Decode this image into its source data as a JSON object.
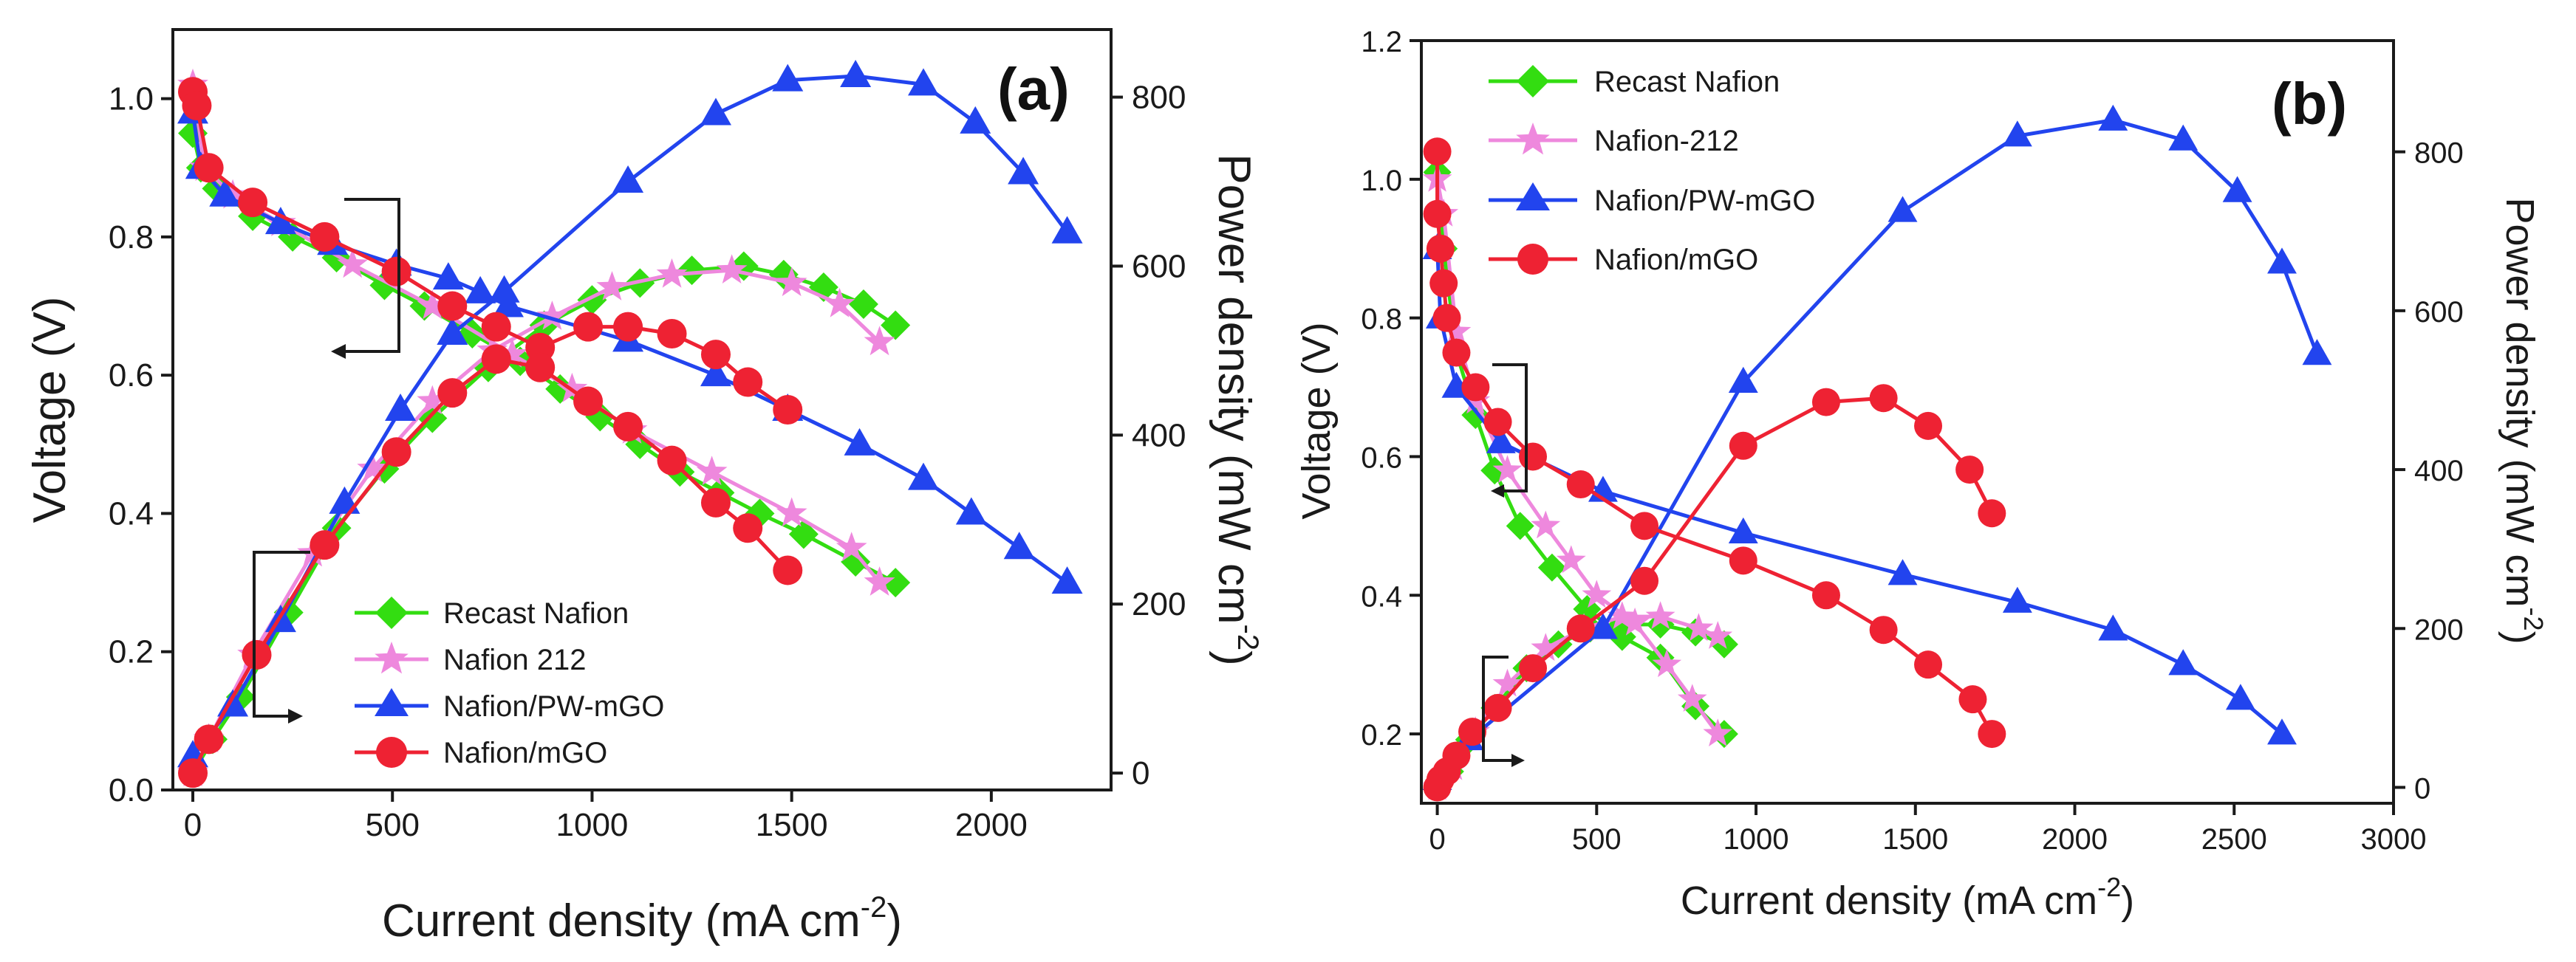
{
  "chart_data": [
    {
      "type": "line",
      "panel_label": "(a)",
      "xlabel": "Current density (mA cm",
      "xlabel_sup": "-2",
      "xlabel_close": ")",
      "ylabel": "Voltage (V)",
      "y2label": "Power density (mW cm",
      "y2label_sup": "-2",
      "y2label_close": ")",
      "xlim": [
        -50,
        2300
      ],
      "ylim": [
        0,
        1.1
      ],
      "y2lim": [
        -20,
        880
      ],
      "xticks": [
        "0",
        "500",
        "1000",
        "1500",
        "2000"
      ],
      "xtick_values": [
        0,
        500,
        1000,
        1500,
        2000
      ],
      "yticks": [
        "0.0",
        "0.2",
        "0.4",
        "0.6",
        "0.8",
        "1.0"
      ],
      "ytick_values": [
        0,
        0.2,
        0.4,
        0.6,
        0.8,
        1.0
      ],
      "y2ticks": [
        "0",
        "200",
        "400",
        "600",
        "800"
      ],
      "y2tick_values": [
        0,
        200,
        400,
        600,
        800
      ],
      "legend": [
        "Recast Nafion",
        "Nafion 212",
        "Nafion/PW-mGO",
        "Nafion/mGO"
      ],
      "legend_position": "bottom-left",
      "series": [
        {
          "name": "Recast Nafion",
          "color": "#33dd11",
          "marker": "diamond",
          "voltage": [
            [
              0,
              0.95
            ],
            [
              20,
              0.9
            ],
            [
              60,
              0.87
            ],
            [
              150,
              0.83
            ],
            [
              250,
              0.8
            ],
            [
              360,
              0.77
            ],
            [
              480,
              0.73
            ],
            [
              580,
              0.7
            ],
            [
              700,
              0.66
            ],
            [
              820,
              0.62
            ],
            [
              920,
              0.58
            ],
            [
              1020,
              0.54
            ],
            [
              1120,
              0.5
            ],
            [
              1220,
              0.46
            ],
            [
              1320,
              0.43
            ],
            [
              1420,
              0.4
            ],
            [
              1530,
              0.37
            ],
            [
              1660,
              0.33
            ],
            [
              1760,
              0.3
            ]
          ],
          "power": [
            [
              0,
              0
            ],
            [
              50,
              40
            ],
            [
              120,
              90
            ],
            [
              240,
              190
            ],
            [
              360,
              290
            ],
            [
              480,
              360
            ],
            [
              600,
              420
            ],
            [
              740,
              480
            ],
            [
              880,
              530
            ],
            [
              1000,
              560
            ],
            [
              1120,
              580
            ],
            [
              1250,
              595
            ],
            [
              1380,
              600
            ],
            [
              1480,
              590
            ],
            [
              1580,
              575
            ],
            [
              1680,
              555
            ],
            [
              1760,
              530
            ]
          ]
        },
        {
          "name": "Nafion 212",
          "color": "#ee88dd",
          "marker": "star",
          "voltage": [
            [
              0,
              1.02
            ],
            [
              30,
              0.9
            ],
            [
              100,
              0.86
            ],
            [
              220,
              0.82
            ],
            [
              400,
              0.76
            ],
            [
              600,
              0.7
            ],
            [
              800,
              0.63
            ],
            [
              950,
              0.58
            ],
            [
              1100,
              0.52
            ],
            [
              1300,
              0.46
            ],
            [
              1500,
              0.4
            ],
            [
              1650,
              0.35
            ],
            [
              1720,
              0.3
            ]
          ],
          "power": [
            [
              0,
              0
            ],
            [
              40,
              40
            ],
            [
              150,
              140
            ],
            [
              300,
              260
            ],
            [
              450,
              360
            ],
            [
              600,
              440
            ],
            [
              750,
              500
            ],
            [
              900,
              540
            ],
            [
              1050,
              575
            ],
            [
              1200,
              590
            ],
            [
              1350,
              595
            ],
            [
              1500,
              580
            ],
            [
              1620,
              555
            ],
            [
              1720,
              510
            ]
          ]
        },
        {
          "name": "Nafion/PW-mGO",
          "color": "#2244ee",
          "marker": "triangle",
          "voltage": [
            [
              0,
              0.98
            ],
            [
              20,
              0.9
            ],
            [
              80,
              0.86
            ],
            [
              220,
              0.82
            ],
            [
              350,
              0.79
            ],
            [
              510,
              0.76
            ],
            [
              640,
              0.74
            ],
            [
              720,
              0.72
            ],
            [
              790,
              0.7
            ],
            [
              1090,
              0.65
            ],
            [
              1310,
              0.6
            ],
            [
              1490,
              0.55
            ],
            [
              1670,
              0.5
            ],
            [
              1830,
              0.45
            ],
            [
              1950,
              0.4
            ],
            [
              2070,
              0.35
            ],
            [
              2190,
              0.3
            ]
          ],
          "power": [
            [
              0,
              20
            ],
            [
              100,
              80
            ],
            [
              220,
              180
            ],
            [
              380,
              320
            ],
            [
              520,
              430
            ],
            [
              650,
              520
            ],
            [
              780,
              570
            ],
            [
              1090,
              700
            ],
            [
              1310,
              780
            ],
            [
              1490,
              820
            ],
            [
              1660,
              825
            ],
            [
              1830,
              815
            ],
            [
              1960,
              770
            ],
            [
              2080,
              710
            ],
            [
              2190,
              640
            ]
          ]
        },
        {
          "name": "Nafion/mGO",
          "color": "#ee2233",
          "marker": "circle",
          "voltage": [
            [
              0,
              1.01
            ],
            [
              10,
              0.99
            ],
            [
              40,
              0.9
            ],
            [
              150,
              0.85
            ],
            [
              330,
              0.8
            ],
            [
              510,
              0.75
            ],
            [
              650,
              0.7
            ],
            [
              760,
              0.67
            ],
            [
              870,
              0.64
            ],
            [
              990,
              0.67
            ],
            [
              1090,
              0.67
            ],
            [
              1200,
              0.66
            ],
            [
              1310,
              0.63
            ],
            [
              1390,
              0.59
            ],
            [
              1490,
              0.55
            ]
          ],
          "power": [
            [
              0,
              0
            ],
            [
              40,
              40
            ],
            [
              160,
              140
            ],
            [
              330,
              270
            ],
            [
              510,
              380
            ],
            [
              650,
              450
            ],
            [
              760,
              490
            ],
            [
              870,
              480
            ],
            [
              990,
              440
            ],
            [
              1090,
              410
            ],
            [
              1200,
              370
            ],
            [
              1310,
              320
            ],
            [
              1390,
              290
            ],
            [
              1490,
              240
            ]
          ]
        }
      ]
    },
    {
      "type": "line",
      "panel_label": "(b)",
      "xlabel": "Current density (mA cm",
      "xlabel_sup": "-2",
      "xlabel_close": ")",
      "ylabel": "Voltage (V)",
      "y2label": "Power density (mW cm",
      "y2label_sup": "-2",
      "y2label_close": ")",
      "xlim": [
        -50,
        3000
      ],
      "ylim": [
        0.1,
        1.2
      ],
      "y2lim": [
        -20,
        940
      ],
      "xticks": [
        "0",
        "500",
        "1000",
        "1500",
        "2000",
        "2500",
        "3000"
      ],
      "xtick_values": [
        0,
        500,
        1000,
        1500,
        2000,
        2500,
        3000
      ],
      "yticks": [
        "0.2",
        "0.4",
        "0.6",
        "0.8",
        "1.0",
        "1.2"
      ],
      "ytick_values": [
        0.2,
        0.4,
        0.6,
        0.8,
        1.0,
        1.2
      ],
      "y2ticks": [
        "0",
        "200",
        "400",
        "600",
        "800"
      ],
      "y2tick_values": [
        0,
        200,
        400,
        600,
        800
      ],
      "legend": [
        "Recast Nafion",
        "Nafion-212",
        "Nafion/PW-mGO",
        "Nafion/mGO"
      ],
      "legend_position": "top-left",
      "series": [
        {
          "name": "Recast Nafion",
          "color": "#33dd11",
          "marker": "diamond",
          "voltage": [
            [
              0,
              1.01
            ],
            [
              20,
              0.9
            ],
            [
              60,
              0.75
            ],
            [
              120,
              0.66
            ],
            [
              180,
              0.58
            ],
            [
              260,
              0.5
            ],
            [
              360,
              0.44
            ],
            [
              470,
              0.38
            ],
            [
              580,
              0.34
            ],
            [
              700,
              0.31
            ],
            [
              810,
              0.24
            ],
            [
              900,
              0.2
            ]
          ],
          "power": [
            [
              0,
              0
            ],
            [
              40,
              20
            ],
            [
              100,
              60
            ],
            [
              180,
              100
            ],
            [
              280,
              150
            ],
            [
              380,
              180
            ],
            [
              480,
              200
            ],
            [
              580,
              205
            ],
            [
              700,
              205
            ],
            [
              810,
              195
            ],
            [
              900,
              180
            ]
          ]
        },
        {
          "name": "Nafion-212",
          "color": "#ee88dd",
          "marker": "star",
          "voltage": [
            [
              0,
              1.0
            ],
            [
              20,
              0.95
            ],
            [
              60,
              0.78
            ],
            [
              120,
              0.68
            ],
            [
              220,
              0.58
            ],
            [
              340,
              0.5
            ],
            [
              420,
              0.45
            ],
            [
              500,
              0.4
            ],
            [
              620,
              0.36
            ],
            [
              720,
              0.3
            ],
            [
              800,
              0.25
            ],
            [
              880,
              0.2
            ]
          ],
          "power": [
            [
              0,
              0
            ],
            [
              50,
              25
            ],
            [
              120,
              70
            ],
            [
              220,
              130
            ],
            [
              340,
              175
            ],
            [
              460,
              200
            ],
            [
              580,
              215
            ],
            [
              700,
              215
            ],
            [
              820,
              200
            ],
            [
              880,
              190
            ]
          ]
        },
        {
          "name": "Nafion/PW-mGO",
          "color": "#2244ee",
          "marker": "triangle",
          "voltage": [
            [
              0,
              0.9
            ],
            [
              10,
              0.8
            ],
            [
              60,
              0.7
            ],
            [
              200,
              0.62
            ],
            [
              520,
              0.55
            ],
            [
              960,
              0.49
            ],
            [
              1460,
              0.43
            ],
            [
              1820,
              0.39
            ],
            [
              2120,
              0.35
            ],
            [
              2340,
              0.3
            ],
            [
              2520,
              0.25
            ],
            [
              2650,
              0.2
            ]
          ],
          "power": [
            [
              0,
              10
            ],
            [
              100,
              60
            ],
            [
              520,
              200
            ],
            [
              960,
              510
            ],
            [
              1460,
              725
            ],
            [
              1820,
              820
            ],
            [
              2120,
              840
            ],
            [
              2340,
              815
            ],
            [
              2510,
              750
            ],
            [
              2650,
              660
            ],
            [
              2760,
              545
            ]
          ]
        },
        {
          "name": "Nafion/mGO",
          "color": "#ee2233",
          "marker": "circle",
          "voltage": [
            [
              0,
              1.04
            ],
            [
              0,
              0.95
            ],
            [
              10,
              0.9
            ],
            [
              20,
              0.85
            ],
            [
              30,
              0.8
            ],
            [
              60,
              0.75
            ],
            [
              120,
              0.7
            ],
            [
              190,
              0.65
            ],
            [
              300,
              0.6
            ],
            [
              450,
              0.56
            ],
            [
              650,
              0.5
            ],
            [
              960,
              0.45
            ],
            [
              1220,
              0.4
            ],
            [
              1400,
              0.35
            ],
            [
              1540,
              0.3
            ],
            [
              1680,
              0.25
            ],
            [
              1740,
              0.2
            ]
          ],
          "power": [
            [
              0,
              0
            ],
            [
              10,
              10
            ],
            [
              30,
              20
            ],
            [
              60,
              40
            ],
            [
              110,
              70
            ],
            [
              190,
              100
            ],
            [
              300,
              150
            ],
            [
              450,
              200
            ],
            [
              650,
              260
            ],
            [
              960,
              430
            ],
            [
              1220,
              485
            ],
            [
              1400,
              490
            ],
            [
              1540,
              455
            ],
            [
              1670,
              400
            ],
            [
              1740,
              345
            ]
          ]
        }
      ]
    }
  ]
}
